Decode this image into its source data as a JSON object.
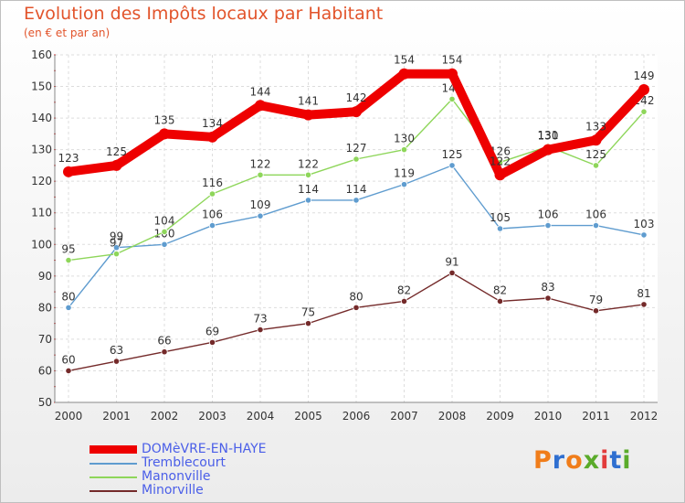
{
  "header": {
    "title": "Evolution des Impôts locaux par Habitant",
    "subtitle": "(en € et par an)"
  },
  "logo": {
    "text": "Proxiti",
    "colors": [
      "#f07d1a",
      "#2f6fd0",
      "#f07d1a",
      "#5aab2a",
      "#e23b3b",
      "#2f6fd0",
      "#5aab2a"
    ]
  },
  "chart_data": {
    "type": "line",
    "x": [
      "2000",
      "2001",
      "2002",
      "2003",
      "2004",
      "2005",
      "2006",
      "2007",
      "2008",
      "2009",
      "2010",
      "2011",
      "2012"
    ],
    "ylim": [
      50,
      160
    ],
    "yticks": [
      50,
      60,
      70,
      80,
      90,
      100,
      110,
      120,
      130,
      140,
      150,
      160
    ],
    "grid": true,
    "legend_placement": "bottom-left",
    "series": [
      {
        "name": "Minorville",
        "color": "#742a2a",
        "values": [
          60,
          63,
          66,
          69,
          73,
          75,
          80,
          82,
          91,
          82,
          83,
          79,
          81
        ]
      },
      {
        "name": "Tremblecourt",
        "color": "#5f9ccf",
        "values": [
          80,
          99,
          100,
          106,
          109,
          114,
          114,
          119,
          125,
          105,
          106,
          106,
          103
        ]
      },
      {
        "name": "Manonville",
        "color": "#8ed65a",
        "values": [
          95,
          97,
          104,
          116,
          122,
          122,
          127,
          130,
          146,
          126,
          131,
          125,
          142
        ]
      },
      {
        "name": "DOMèVRE-EN-HAYE",
        "color": "#ee0000",
        "values": [
          123,
          125,
          135,
          134,
          144,
          141,
          142,
          154,
          154,
          122,
          130,
          133,
          149
        ]
      }
    ],
    "legend": [
      {
        "name": "DOMèVRE-EN-HAYE",
        "color": "#ee0000",
        "text_color": "#4a5ee8"
      },
      {
        "name": "Tremblecourt",
        "color": "#5f9ccf",
        "text_color": "#4a5ee8"
      },
      {
        "name": "Manonville",
        "color": "#8ed65a",
        "text_color": "#4a5ee8"
      },
      {
        "name": "Minorville",
        "color": "#742a2a",
        "text_color": "#4a5ee8"
      }
    ]
  }
}
